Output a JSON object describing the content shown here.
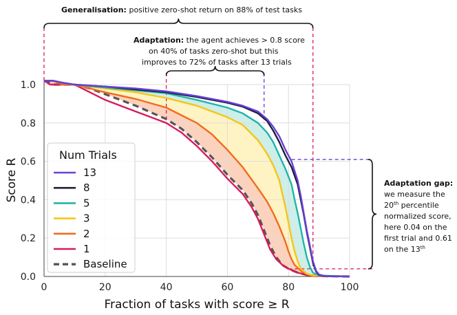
{
  "chart_data": {
    "type": "line",
    "xlabel": "Fraction of tasks with score ≥ R",
    "ylabel": "Score R",
    "xlim": [
      0,
      100
    ],
    "ylim": [
      0,
      1.0
    ],
    "x_ticks": [
      "0",
      "20",
      "40",
      "60",
      "80",
      "100"
    ],
    "y_ticks": [
      "0.0",
      "0.2",
      "0.4",
      "0.6",
      "0.8",
      "1.0"
    ],
    "grid": true,
    "legend": {
      "title": "Num Trials",
      "placement": "left"
    },
    "series": [
      {
        "name": "13",
        "color": "#6b3fd6",
        "dash": false,
        "points": [
          [
            0,
            1.02
          ],
          [
            3,
            1.02
          ],
          [
            6,
            1.01
          ],
          [
            10,
            1.0
          ],
          [
            20,
            0.99
          ],
          [
            30,
            0.98
          ],
          [
            40,
            0.965
          ],
          [
            50,
            0.94
          ],
          [
            60,
            0.91
          ],
          [
            65,
            0.89
          ],
          [
            70,
            0.86
          ],
          [
            73,
            0.82
          ],
          [
            75,
            0.78
          ],
          [
            77,
            0.73
          ],
          [
            79,
            0.66
          ],
          [
            81,
            0.6
          ],
          [
            83,
            0.5
          ],
          [
            84,
            0.42
          ],
          [
            85,
            0.33
          ],
          [
            86,
            0.24
          ],
          [
            87,
            0.16
          ],
          [
            88,
            0.08
          ],
          [
            89,
            0.03
          ],
          [
            90,
            0.01
          ],
          [
            92,
            0.002
          ],
          [
            100,
            0.0
          ]
        ]
      },
      {
        "name": "8",
        "color": "#1b1f3b",
        "dash": false,
        "points": [
          [
            0,
            1.02
          ],
          [
            3,
            1.02
          ],
          [
            6,
            1.01
          ],
          [
            10,
            1.0
          ],
          [
            20,
            0.99
          ],
          [
            30,
            0.975
          ],
          [
            40,
            0.96
          ],
          [
            50,
            0.935
          ],
          [
            60,
            0.905
          ],
          [
            65,
            0.885
          ],
          [
            70,
            0.85
          ],
          [
            73,
            0.81
          ],
          [
            75,
            0.76
          ],
          [
            77,
            0.7
          ],
          [
            79,
            0.63
          ],
          [
            81,
            0.57
          ],
          [
            83,
            0.48
          ],
          [
            84,
            0.4
          ],
          [
            85,
            0.32
          ],
          [
            86,
            0.23
          ],
          [
            87,
            0.15
          ],
          [
            88,
            0.07
          ],
          [
            89,
            0.025
          ],
          [
            90,
            0.008
          ],
          [
            92,
            0.002
          ],
          [
            100,
            0.0
          ]
        ]
      },
      {
        "name": "5",
        "color": "#1fb5a8",
        "dash": false,
        "points": [
          [
            0,
            1.02
          ],
          [
            3,
            1.02
          ],
          [
            6,
            1.01
          ],
          [
            10,
            1.0
          ],
          [
            20,
            0.985
          ],
          [
            30,
            0.97
          ],
          [
            40,
            0.955
          ],
          [
            50,
            0.92
          ],
          [
            60,
            0.88
          ],
          [
            65,
            0.85
          ],
          [
            70,
            0.8
          ],
          [
            73,
            0.75
          ],
          [
            75,
            0.7
          ],
          [
            77,
            0.63
          ],
          [
            79,
            0.56
          ],
          [
            81,
            0.48
          ],
          [
            82,
            0.4
          ],
          [
            83,
            0.33
          ],
          [
            84,
            0.25
          ],
          [
            85,
            0.17
          ],
          [
            86,
            0.1
          ],
          [
            87,
            0.05
          ],
          [
            88,
            0.02
          ],
          [
            90,
            0.005
          ],
          [
            100,
            0.0
          ]
        ]
      },
      {
        "name": "3",
        "color": "#f5c518",
        "dash": false,
        "points": [
          [
            0,
            1.02
          ],
          [
            3,
            1.02
          ],
          [
            6,
            1.01
          ],
          [
            10,
            1.0
          ],
          [
            20,
            0.98
          ],
          [
            30,
            0.96
          ],
          [
            40,
            0.93
          ],
          [
            50,
            0.89
          ],
          [
            60,
            0.83
          ],
          [
            65,
            0.79
          ],
          [
            70,
            0.71
          ],
          [
            73,
            0.64
          ],
          [
            75,
            0.58
          ],
          [
            77,
            0.5
          ],
          [
            78,
            0.43
          ],
          [
            79,
            0.36
          ],
          [
            80,
            0.28
          ],
          [
            81,
            0.2
          ],
          [
            82,
            0.13
          ],
          [
            83,
            0.08
          ],
          [
            84,
            0.04
          ],
          [
            86,
            0.015
          ],
          [
            88,
            0.005
          ],
          [
            100,
            0.0
          ]
        ]
      },
      {
        "name": "2",
        "color": "#f26b1d",
        "dash": false,
        "points": [
          [
            0,
            1.02
          ],
          [
            3,
            1.02
          ],
          [
            6,
            1.0
          ],
          [
            10,
            1.0
          ],
          [
            20,
            0.96
          ],
          [
            30,
            0.925
          ],
          [
            40,
            0.88
          ],
          [
            50,
            0.8
          ],
          [
            55,
            0.74
          ],
          [
            60,
            0.66
          ],
          [
            65,
            0.57
          ],
          [
            70,
            0.46
          ],
          [
            73,
            0.39
          ],
          [
            75,
            0.33
          ],
          [
            77,
            0.26
          ],
          [
            79,
            0.18
          ],
          [
            80,
            0.13
          ],
          [
            81,
            0.09
          ],
          [
            82,
            0.06
          ],
          [
            84,
            0.03
          ],
          [
            86,
            0.012
          ],
          [
            88,
            0.004
          ],
          [
            100,
            0.0
          ]
        ]
      },
      {
        "name": "1",
        "color": "#d81b5a",
        "dash": false,
        "points": [
          [
            0,
            1.02
          ],
          [
            2,
            1.0
          ],
          [
            5,
            1.0
          ],
          [
            10,
            1.0
          ],
          [
            15,
            0.96
          ],
          [
            20,
            0.92
          ],
          [
            30,
            0.86
          ],
          [
            40,
            0.8
          ],
          [
            45,
            0.75
          ],
          [
            50,
            0.68
          ],
          [
            55,
            0.6
          ],
          [
            60,
            0.51
          ],
          [
            65,
            0.43
          ],
          [
            68,
            0.36
          ],
          [
            70,
            0.3
          ],
          [
            72,
            0.22
          ],
          [
            74,
            0.14
          ],
          [
            76,
            0.09
          ],
          [
            78,
            0.06
          ],
          [
            80,
            0.04
          ],
          [
            83,
            0.02
          ],
          [
            86,
            0.008
          ],
          [
            88,
            0.002
          ],
          [
            100,
            0.0
          ]
        ]
      },
      {
        "name": "Baseline",
        "color": "#555555",
        "dash": true,
        "points": [
          [
            0,
            1.02
          ],
          [
            3,
            1.0
          ],
          [
            10,
            1.0
          ],
          [
            15,
            0.98
          ],
          [
            20,
            0.95
          ],
          [
            30,
            0.89
          ],
          [
            40,
            0.82
          ],
          [
            45,
            0.77
          ],
          [
            50,
            0.7
          ],
          [
            55,
            0.62
          ],
          [
            60,
            0.53
          ],
          [
            65,
            0.45
          ],
          [
            68,
            0.38
          ],
          [
            70,
            0.32
          ],
          [
            72,
            0.24
          ],
          [
            74,
            0.16
          ],
          [
            76,
            0.1
          ],
          [
            78,
            0.06
          ],
          [
            80,
            0.04
          ],
          [
            83,
            0.02
          ],
          [
            86,
            0.008
          ],
          [
            90,
            0.002
          ],
          [
            100,
            0.0
          ]
        ]
      }
    ],
    "annotations": {
      "generalisation": {
        "bold": "Generalisation:",
        "text": " positive zero-shot return on 88% of test tasks"
      },
      "adaptation": {
        "line1_bold": "Adaptation:",
        "line1_text": " the agent achieves > 0.8 score",
        "line2": "on 40% of tasks zero-shot but this",
        "line3": "improves to 72% of tasks after 13 trials"
      },
      "gap": {
        "title": "Adaptation gap:",
        "line1": "we measure the",
        "line2_num": "20",
        "line2_sup": "th",
        "line2_rest": " percentile",
        "line3": "normalized score,",
        "line4": "here 0.04 on the",
        "line5": "first trial and 0.61",
        "line6_pre": "on the 13",
        "line6_sup": "th"
      }
    }
  },
  "colors": {
    "fill_baseline_to_2": "#fbd2bd",
    "fill_2_to_3": "#fef3c3",
    "fill_3_to_5": "#cdeee9",
    "guide_pink": "#d81b5a",
    "guide_purple": "#6b3fd6",
    "grid": "#dddddd"
  }
}
